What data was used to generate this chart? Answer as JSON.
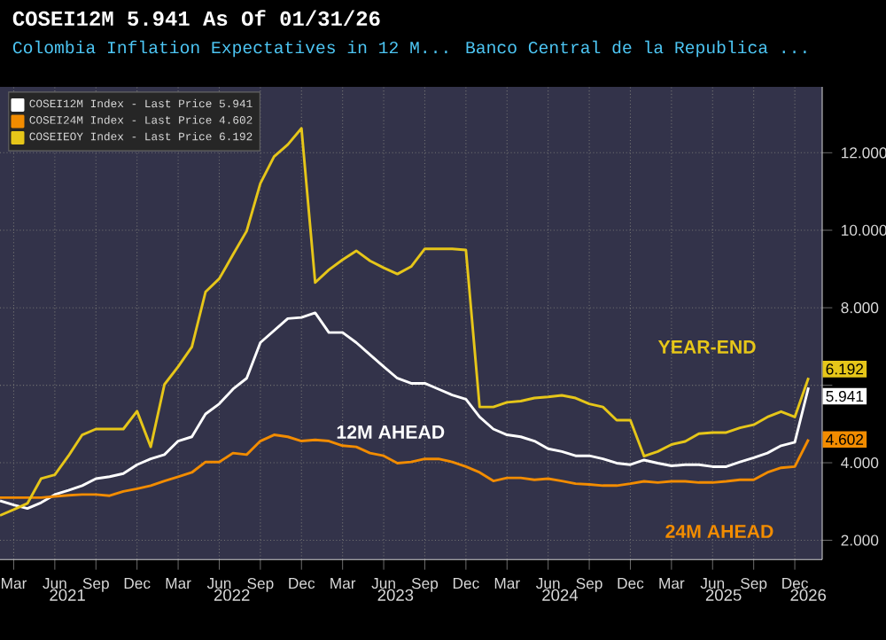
{
  "chart_data": {
    "type": "line",
    "title": "COSEI12M   5.941   As Of 01/31/26",
    "subtitle": "Colombia Inflation Expectatives in 12 M...  Banco Central de la Republica ...",
    "x": [
      "2021-02",
      "2021-03",
      "2021-04",
      "2021-05",
      "2021-06",
      "2021-07",
      "2021-08",
      "2021-09",
      "2021-10",
      "2021-11",
      "2021-12",
      "2022-01",
      "2022-02",
      "2022-03",
      "2022-04",
      "2022-05",
      "2022-06",
      "2022-07",
      "2022-08",
      "2022-09",
      "2022-10",
      "2022-11",
      "2022-12",
      "2023-01",
      "2023-02",
      "2023-03",
      "2023-04",
      "2023-05",
      "2023-06",
      "2023-07",
      "2023-08",
      "2023-09",
      "2023-10",
      "2023-11",
      "2023-12",
      "2024-01",
      "2024-02",
      "2024-03",
      "2024-04",
      "2024-05",
      "2024-06",
      "2024-07",
      "2024-08",
      "2024-09",
      "2024-10",
      "2024-11",
      "2024-12",
      "2025-01",
      "2025-02",
      "2025-03",
      "2025-04",
      "2025-05",
      "2025-06",
      "2025-07",
      "2025-08",
      "2025-09",
      "2025-10",
      "2025-11",
      "2025-12",
      "2026-01"
    ],
    "series": [
      {
        "name": "COSEI12M Index - Last Price 5.941",
        "color": "#ffffff",
        "values": [
          3.02,
          2.91,
          2.82,
          2.97,
          3.18,
          3.29,
          3.41,
          3.59,
          3.64,
          3.72,
          3.95,
          4.1,
          4.21,
          4.56,
          4.67,
          5.26,
          5.52,
          5.9,
          6.18,
          7.1,
          7.41,
          7.72,
          7.75,
          7.87,
          7.36,
          7.36,
          7.1,
          6.79,
          6.48,
          6.18,
          6.05,
          6.05,
          5.9,
          5.75,
          5.64,
          5.18,
          4.87,
          4.72,
          4.67,
          4.56,
          4.36,
          4.29,
          4.18,
          4.18,
          4.1,
          3.99,
          3.95,
          4.07,
          3.99,
          3.92,
          3.95,
          3.95,
          3.9,
          3.9,
          4.02,
          4.13,
          4.25,
          4.44,
          4.53,
          5.941
        ],
        "value_labels": [
          null,
          null,
          null,
          null,
          null,
          null,
          null,
          null,
          null,
          null,
          null,
          null,
          null,
          null,
          null,
          null,
          null,
          null,
          null,
          null,
          null,
          null,
          null,
          null,
          null,
          null,
          null,
          null,
          null,
          null,
          null,
          null,
          null,
          null,
          null,
          null,
          null,
          null,
          null,
          null,
          null,
          null,
          null,
          null,
          null,
          null,
          null,
          null,
          null,
          null,
          null,
          null,
          null,
          null,
          null,
          null,
          null,
          null,
          null,
          "5.941"
        ]
      },
      {
        "name": "COSEI24M Index - Last Price 4.602",
        "color": "#f28c00",
        "values": [
          3.1,
          3.1,
          3.1,
          3.1,
          3.13,
          3.16,
          3.18,
          3.18,
          3.15,
          3.26,
          3.33,
          3.41,
          3.53,
          3.64,
          3.75,
          4.02,
          4.02,
          4.25,
          4.21,
          4.56,
          4.72,
          4.67,
          4.56,
          4.59,
          4.56,
          4.44,
          4.41,
          4.25,
          4.18,
          3.99,
          4.02,
          4.1,
          4.1,
          4.02,
          3.9,
          3.75,
          3.53,
          3.61,
          3.61,
          3.56,
          3.59,
          3.53,
          3.46,
          3.44,
          3.41,
          3.41,
          3.46,
          3.52,
          3.49,
          3.52,
          3.52,
          3.49,
          3.49,
          3.52,
          3.56,
          3.56,
          3.75,
          3.87,
          3.9,
          4.602
        ],
        "value_labels": [
          null,
          null,
          null,
          null,
          null,
          null,
          null,
          null,
          null,
          null,
          null,
          null,
          null,
          null,
          null,
          null,
          null,
          null,
          null,
          null,
          null,
          null,
          null,
          null,
          null,
          null,
          null,
          null,
          null,
          null,
          null,
          null,
          null,
          null,
          null,
          null,
          null,
          null,
          null,
          null,
          null,
          null,
          null,
          null,
          null,
          null,
          null,
          null,
          null,
          null,
          null,
          null,
          null,
          null,
          null,
          null,
          null,
          null,
          null,
          "4.602"
        ]
      },
      {
        "name": "COSEIEOY Index - Last Price 6.192",
        "color": "#e6c619",
        "values": [
          2.64,
          2.79,
          2.95,
          3.59,
          3.69,
          4.18,
          4.72,
          4.87,
          4.87,
          4.87,
          5.33,
          4.41,
          6.02,
          6.48,
          6.99,
          8.41,
          8.75,
          9.37,
          9.98,
          11.21,
          11.9,
          12.21,
          12.63,
          8.65,
          8.98,
          9.24,
          9.47,
          9.21,
          9.03,
          8.87,
          9.06,
          9.52,
          9.52,
          9.52,
          9.49,
          5.44,
          5.44,
          5.56,
          5.59,
          5.67,
          5.7,
          5.74,
          5.67,
          5.52,
          5.44,
          5.1,
          5.1,
          4.17,
          4.29,
          4.47,
          4.55,
          4.75,
          4.78,
          4.78,
          4.9,
          4.98,
          5.18,
          5.32,
          5.18,
          6.192
        ],
        "value_labels": [
          null,
          null,
          null,
          null,
          null,
          null,
          null,
          null,
          null,
          null,
          null,
          null,
          null,
          null,
          null,
          null,
          null,
          null,
          null,
          null,
          null,
          null,
          null,
          null,
          null,
          null,
          null,
          null,
          null,
          null,
          null,
          null,
          null,
          null,
          null,
          null,
          null,
          null,
          null,
          null,
          null,
          null,
          null,
          null,
          null,
          null,
          null,
          null,
          null,
          null,
          null,
          null,
          null,
          null,
          null,
          null,
          null,
          null,
          null,
          "6.192"
        ]
      }
    ],
    "xlim": [
      "2021-02",
      "2026-02"
    ],
    "xticks": [
      {
        "value": "2021-03",
        "label": "Mar"
      },
      {
        "value": "2021-06",
        "label": "Jun"
      },
      {
        "value": "2021-09",
        "label": "Sep"
      },
      {
        "value": "2021-12",
        "label": "Dec"
      },
      {
        "value": "2022-03",
        "label": "Mar"
      },
      {
        "value": "2022-06",
        "label": "Jun"
      },
      {
        "value": "2022-09",
        "label": "Sep"
      },
      {
        "value": "2022-12",
        "label": "Dec"
      },
      {
        "value": "2023-03",
        "label": "Mar"
      },
      {
        "value": "2023-06",
        "label": "Jun"
      },
      {
        "value": "2023-09",
        "label": "Sep"
      },
      {
        "value": "2023-12",
        "label": "Dec"
      },
      {
        "value": "2024-03",
        "label": "Mar"
      },
      {
        "value": "2024-06",
        "label": "Jun"
      },
      {
        "value": "2024-09",
        "label": "Sep"
      },
      {
        "value": "2024-12",
        "label": "Dec"
      },
      {
        "value": "2025-03",
        "label": "Mar"
      },
      {
        "value": "2025-06",
        "label": "Jun"
      },
      {
        "value": "2025-09",
        "label": "Sep"
      },
      {
        "value": "2025-12",
        "label": "Dec"
      }
    ],
    "ylim": [
      1.5,
      13.7
    ],
    "yticks": [
      {
        "value": 2,
        "label": "2.000"
      },
      {
        "value": 4,
        "label": "4.000"
      },
      {
        "value": 6,
        "label": null
      },
      {
        "value": 8,
        "label": "8.000"
      },
      {
        "value": 10,
        "label": "10.000"
      },
      {
        "value": 12,
        "label": "12.000"
      }
    ],
    "annotations": [
      "12M AHEAD",
      "24M AHEAD",
      "YEAR-END",
      "2021",
      "2022",
      "2023",
      "2024",
      "2025",
      "2026"
    ],
    "grid": true,
    "legend": "top left",
    "marker": "none",
    "line_style": "solid"
  }
}
